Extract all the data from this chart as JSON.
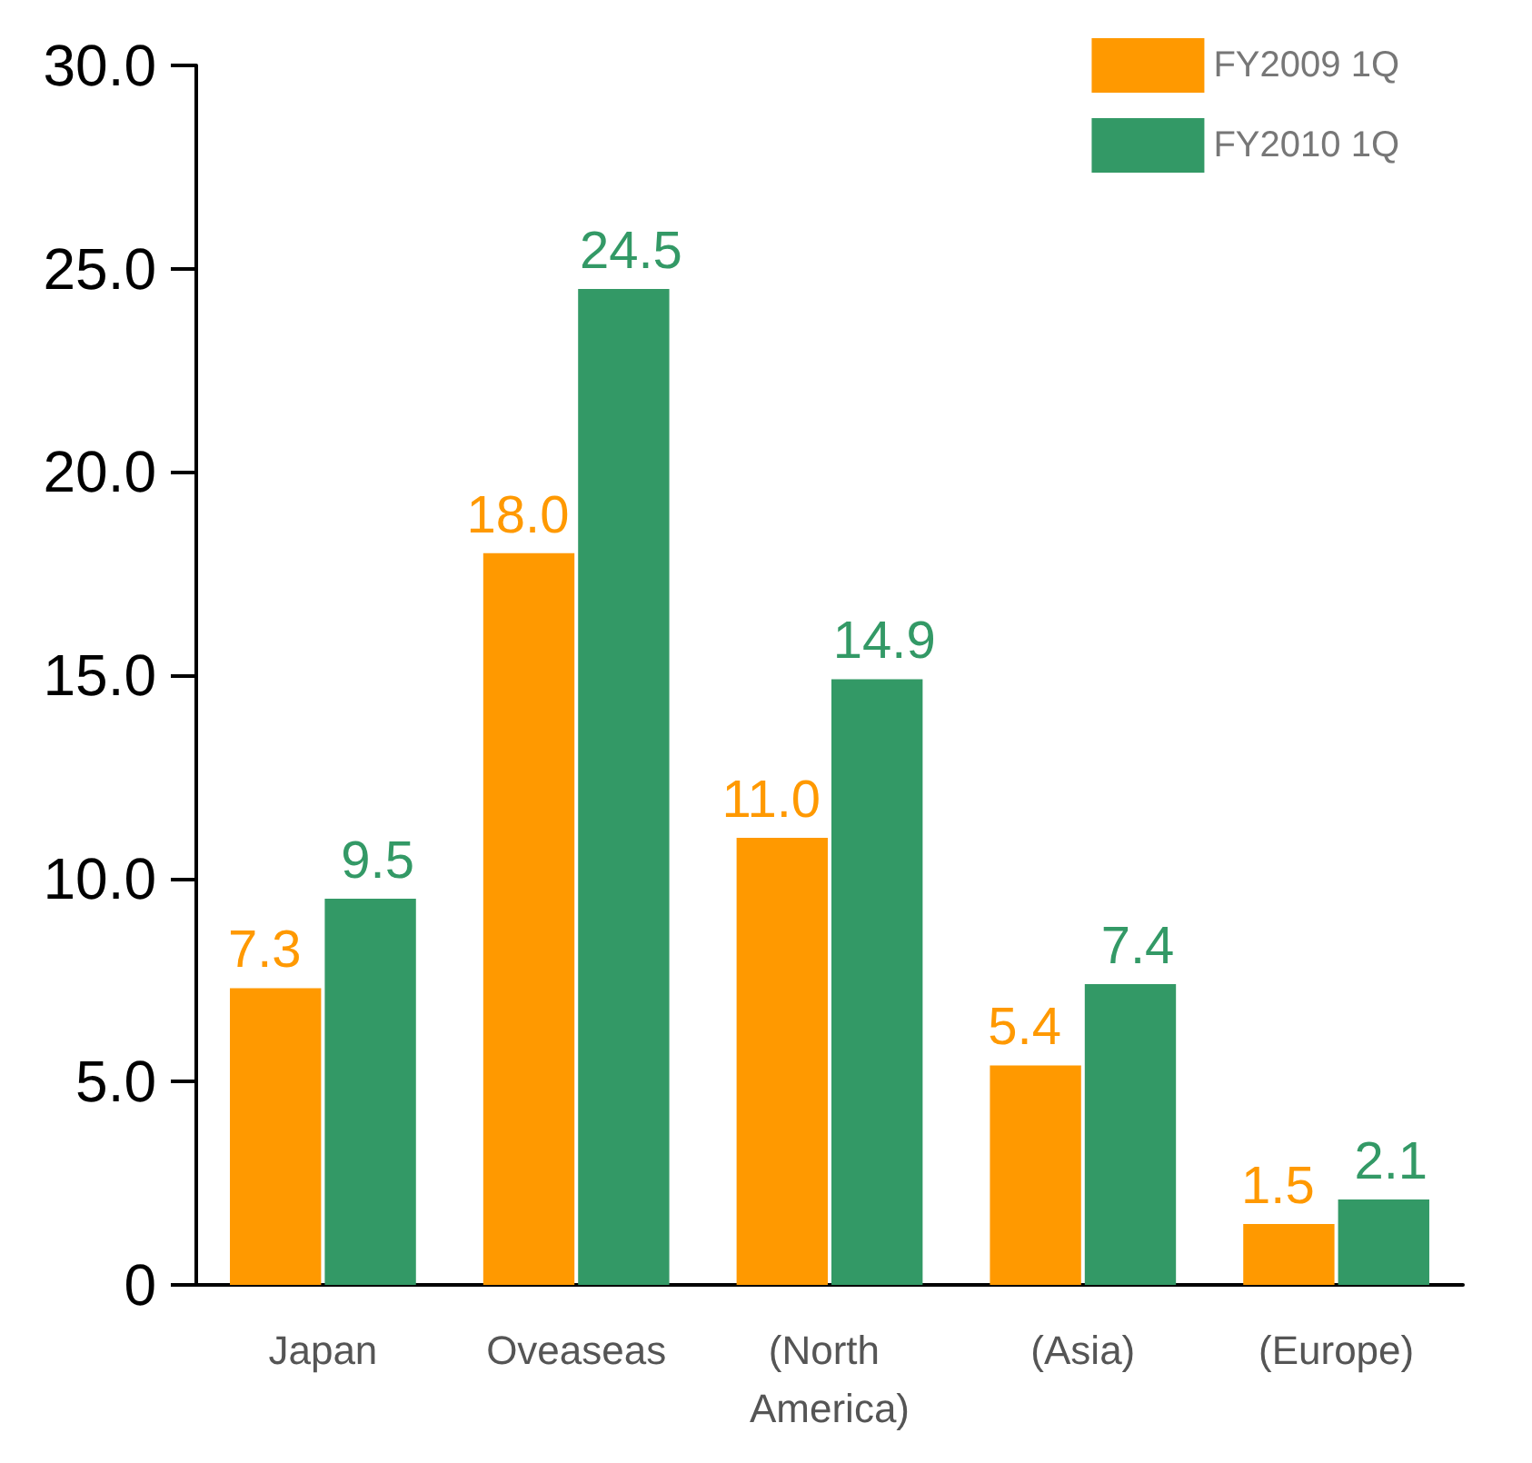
{
  "chart_data": {
    "type": "bar",
    "categories": [
      "Japan",
      "Oveaseas",
      "(North America)",
      "(Asia)",
      "(Europe)"
    ],
    "series": [
      {
        "name": "FY2009 1Q",
        "color": "#ff9900",
        "values": [
          7.3,
          18.0,
          11.0,
          5.4,
          1.5
        ],
        "value_labels": [
          "7.3",
          "18.0",
          "11.0",
          "5.4",
          "1.5"
        ]
      },
      {
        "name": "FY2010 1Q",
        "color": "#339966",
        "values": [
          9.5,
          24.5,
          14.9,
          7.4,
          2.1
        ],
        "value_labels": [
          "9.5",
          "24.5",
          "14.9",
          "7.4",
          "2.1"
        ]
      }
    ],
    "ylim": [
      0,
      30
    ],
    "yticks": [
      0,
      {
        "value": 5,
        "label": "5.0"
      },
      {
        "value": 10,
        "label": "10.0"
      },
      {
        "value": 15,
        "label": "15.0"
      },
      {
        "value": 20,
        "label": "20.0"
      },
      {
        "value": 25,
        "label": "25.0"
      },
      {
        "value": 30,
        "label": "30.0"
      }
    ],
    "grid": false,
    "legend": "top right"
  }
}
